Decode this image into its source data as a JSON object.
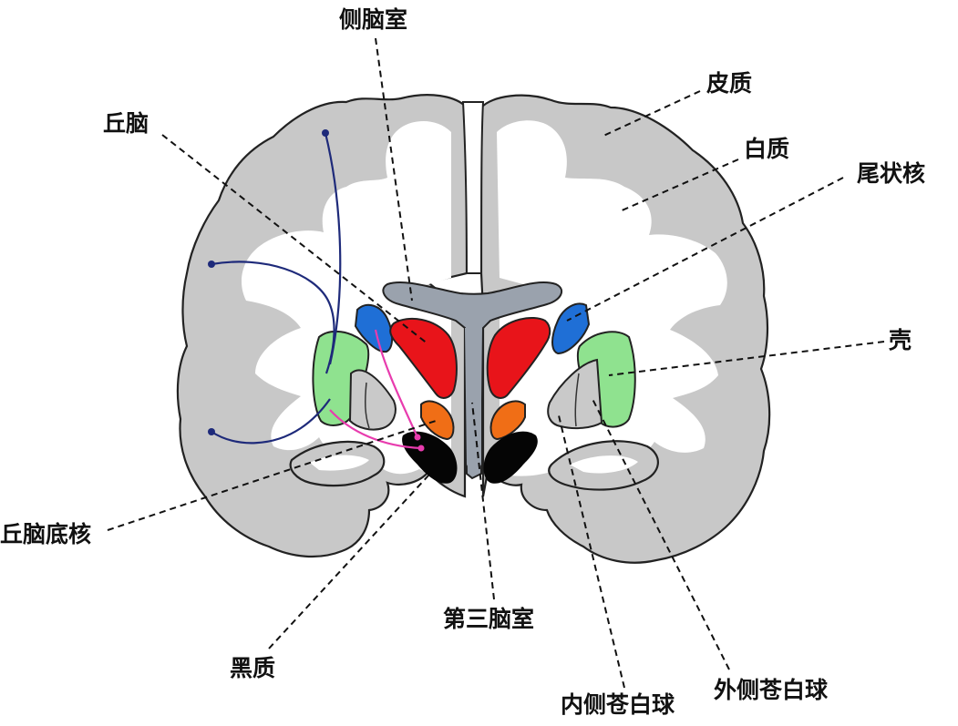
{
  "labels": {
    "lateral_ventricle": "侧脑室",
    "cortex": "皮质",
    "thalamus": "丘脑",
    "white_matter": "白质",
    "caudate_nucleus": "尾状核",
    "putamen": "壳",
    "subthalamic_nucleus": "丘脑底核",
    "third_ventricle": "第三脑室",
    "substantia_nigra": "黑质",
    "globus_pallidus_internal": "内侧苍白球",
    "globus_pallidus_external": "外侧苍白球"
  },
  "colors": {
    "cortex": "#c8c8c8",
    "white_matter": "#ffffff",
    "ventricle": "#9aa2ad",
    "thalamus": "#e8141a",
    "caudate": "#1f6fd6",
    "putamen": "#8fe28f",
    "globus_pallidus": "#c9c9c9",
    "subthalamic": "#f06e16",
    "substantia_nigra": "#050505",
    "projection_blue": "#1e2a7a",
    "projection_pink": "#e83cae"
  }
}
